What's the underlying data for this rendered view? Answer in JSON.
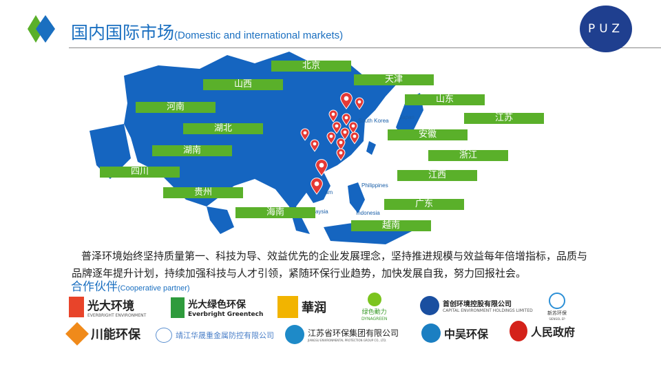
{
  "header": {
    "title_cn": "国内国际市场",
    "title_en": "(Domestic and international markets)",
    "logo_text": "PUZ"
  },
  "map": {
    "regions": [
      "北京",
      "天津",
      "山西",
      "山东",
      "河南",
      "江苏",
      "湖北",
      "安徽",
      "湖南",
      "浙江",
      "四川",
      "江西",
      "贵州",
      "广东",
      "海南",
      "越南"
    ],
    "geo_labels": [
      "South Korea",
      "Japan",
      "Philippines",
      "Indonesia",
      "aysia",
      "am"
    ],
    "colors": {
      "map": "#1565c0",
      "label": "#5ab02a",
      "pin": "#e53935"
    }
  },
  "intro": "普泽环境始终坚持质量第一、科技为导、效益优先的企业发展理念，坚持推进规模与效益每年倍增指标，品质与品牌逐年提升计划，持续加强科技与人才引领，紧随环保行业趋势，加快发展自我，努力回报社会。",
  "partners": {
    "title_cn": "合作伙伴",
    "title_en": "(Cooperative partner)",
    "logos": [
      {
        "name": "光大环境",
        "sub": "EVERBRIGHT ENVIRONMENT"
      },
      {
        "name": "光大绿色环保",
        "sub": "Everbright Greentech"
      },
      {
        "name": "華润",
        "sub": ""
      },
      {
        "name": "绿色動力",
        "sub": "DYNAGREEN"
      },
      {
        "name": "首创环境控股有限公司",
        "sub": "CAPITAL ENVIRONMENT HOLDINGS LIMITED"
      },
      {
        "name": "新苏环保",
        "sub": "SIENSOL EP"
      },
      {
        "name": "川能环保",
        "sub": ""
      },
      {
        "name": "靖江华晟重金属防控有限公司",
        "sub": ""
      },
      {
        "name": "江苏省环保集团有限公司",
        "sub": "JIANGSU ENVIRONMENTAL PROTECTION GROUP CO., LTD."
      },
      {
        "name": "中吴环保",
        "sub": ""
      },
      {
        "name": "人民政府",
        "sub": ""
      }
    ]
  }
}
